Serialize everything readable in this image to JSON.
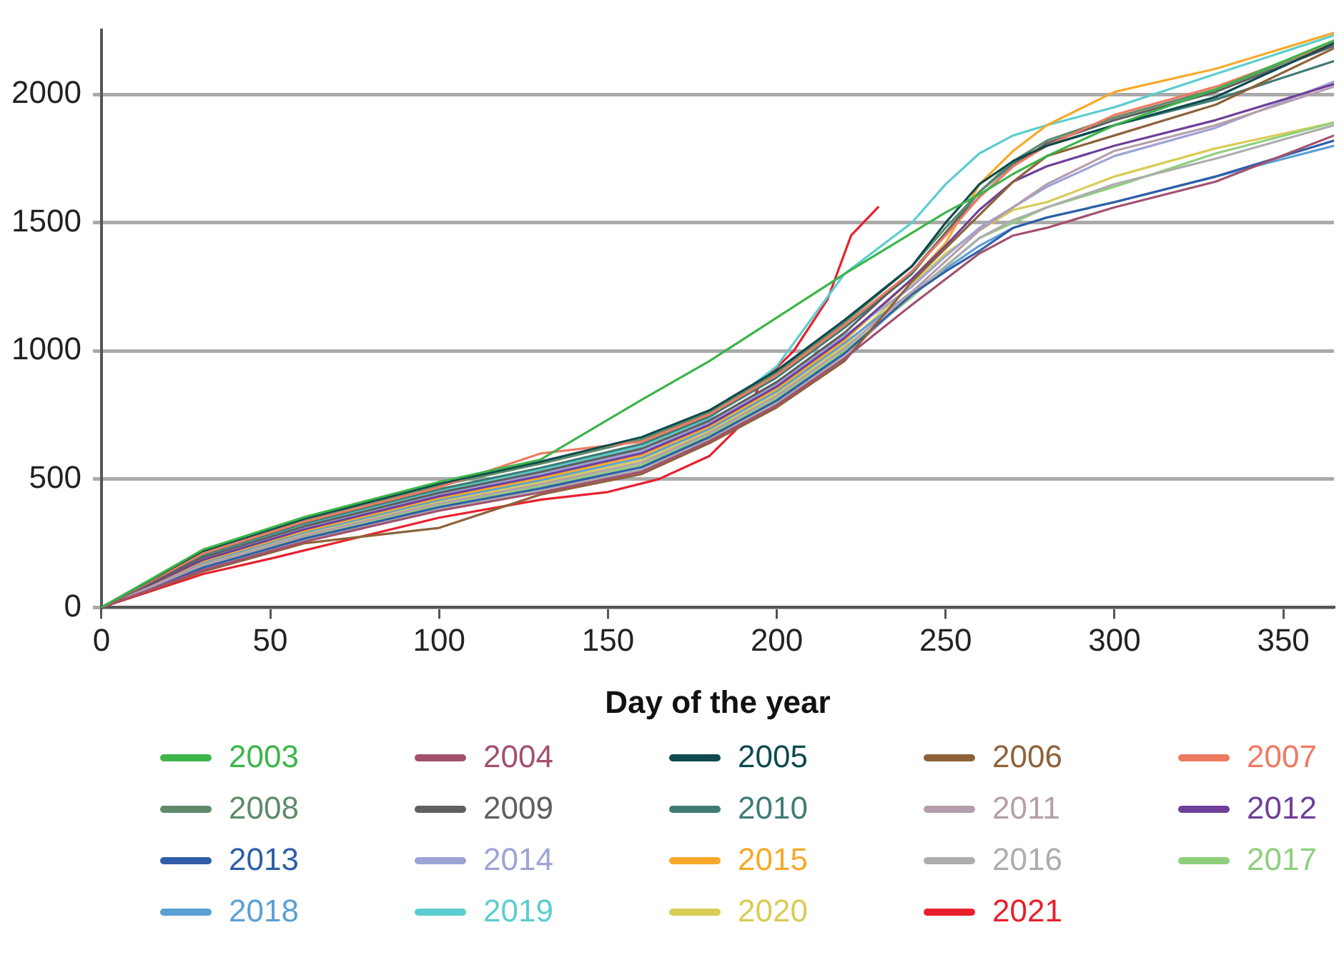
{
  "chart_data": {
    "type": "line",
    "xlabel": "Day of the year",
    "xlim": [
      0,
      365
    ],
    "xticks": [
      0,
      50,
      100,
      150,
      200,
      250,
      300,
      350
    ],
    "ylim": [
      0,
      2250
    ],
    "yticks": [
      0,
      500,
      1000,
      1500,
      2000
    ],
    "grid": "y",
    "legend": "bottom",
    "marker": "none",
    "line_style": "solid",
    "x": [
      0,
      30,
      60,
      100,
      130,
      160,
      180,
      200,
      220,
      240,
      250,
      260,
      270,
      280,
      300,
      330,
      365
    ],
    "series": [
      {
        "name": "2003",
        "color": "#3cb54a",
        "values": [
          0,
          225,
          352,
          489,
          576,
          810,
          960,
          1130,
          1300,
          1460,
          1540,
          1610,
          1690,
          1760,
          1880,
          2020,
          2210
        ]
      },
      {
        "name": "2004",
        "color": "#a2506e",
        "values": [
          0,
          145,
          256,
          377,
          448,
          529,
          648,
          789,
          970,
          1180,
          1280,
          1380,
          1450,
          1480,
          1560,
          1660,
          1840
        ]
      },
      {
        "name": "2005",
        "color": "#0e4a4e",
        "values": [
          0,
          220,
          346,
          482,
          568,
          664,
          768,
          924,
          1120,
          1330,
          1500,
          1650,
          1740,
          1800,
          1880,
          1990,
          2200
        ]
      },
      {
        "name": "2006",
        "color": "#8e6239",
        "values": [
          0,
          140,
          250,
          310,
          440,
          520,
          640,
          780,
          960,
          1270,
          1400,
          1530,
          1660,
          1760,
          1840,
          1960,
          2180
        ]
      },
      {
        "name": "2007",
        "color": "#ef7a62",
        "values": [
          0,
          210,
          334,
          468,
          600,
          646,
          752,
          906,
          1100,
          1310,
          1450,
          1600,
          1720,
          1800,
          1920,
          2030,
          2200
        ]
      },
      {
        "name": "2008",
        "color": "#5e8a6a",
        "values": [
          0,
          215,
          340,
          475,
          560,
          655,
          760,
          915,
          1110,
          1330,
          1480,
          1620,
          1740,
          1820,
          1910,
          2020,
          2200
        ]
      },
      {
        "name": "2009",
        "color": "#5f5f5f",
        "values": [
          0,
          195,
          316,
          447,
          528,
          619,
          728,
          879,
          1070,
          1310,
          1460,
          1600,
          1720,
          1810,
          1900,
          2010,
          2190
        ]
      },
      {
        "name": "2010",
        "color": "#3e7c74",
        "values": [
          0,
          205,
          328,
          461,
          544,
          637,
          744,
          897,
          1090,
          1300,
          1460,
          1620,
          1730,
          1800,
          1880,
          1980,
          2130
        ]
      },
      {
        "name": "2011",
        "color": "#b59eab",
        "values": [
          0,
          165,
          280,
          405,
          480,
          565,
          680,
          825,
          1010,
          1230,
          1350,
          1470,
          1560,
          1650,
          1780,
          1880,
          2030
        ]
      },
      {
        "name": "2012",
        "color": "#6e3f9a",
        "values": [
          0,
          185,
          304,
          433,
          512,
          601,
          712,
          861,
          1050,
          1280,
          1410,
          1550,
          1660,
          1720,
          1800,
          1900,
          2040
        ]
      },
      {
        "name": "2013",
        "color": "#2f5ea8",
        "values": [
          0,
          155,
          268,
          391,
          464,
          547,
          664,
          807,
          990,
          1220,
          1310,
          1390,
          1480,
          1520,
          1580,
          1680,
          1820
        ]
      },
      {
        "name": "2014",
        "color": "#9ea3d6",
        "values": [
          0,
          190,
          310,
          440,
          520,
          610,
          720,
          870,
          1060,
          1250,
          1370,
          1480,
          1560,
          1640,
          1760,
          1870,
          2050
        ]
      },
      {
        "name": "2015",
        "color": "#f7a929",
        "values": [
          0,
          180,
          298,
          426,
          504,
          592,
          704,
          852,
          1040,
          1280,
          1420,
          1650,
          1780,
          1880,
          2010,
          2100,
          2240
        ]
      },
      {
        "name": "2016",
        "color": "#adadad",
        "values": [
          0,
          150,
          262,
          384,
          456,
          538,
          656,
          798,
          980,
          1220,
          1330,
          1440,
          1510,
          1560,
          1650,
          1750,
          1880
        ]
      },
      {
        "name": "2017",
        "color": "#8fcf7c",
        "values": [
          0,
          160,
          274,
          398,
          472,
          556,
          672,
          816,
          1000,
          1210,
          1330,
          1440,
          1500,
          1560,
          1640,
          1770,
          1890
        ]
      },
      {
        "name": "2018",
        "color": "#5aa0d4",
        "values": [
          0,
          175,
          292,
          419,
          496,
          583,
          696,
          843,
          1030,
          1230,
          1320,
          1410,
          1480,
          1520,
          1580,
          1680,
          1800
        ]
      },
      {
        "name": "2019",
        "color": "#5ccdcf",
        "values": [
          0,
          200,
          322,
          454,
          536,
          628,
          736,
          940,
          1300,
          1500,
          1650,
          1770,
          1840,
          1880,
          1950,
          2080,
          2230
        ]
      },
      {
        "name": "2020",
        "color": "#d8cc55",
        "values": [
          0,
          170,
          286,
          412,
          488,
          574,
          688,
          834,
          1020,
          1260,
          1380,
          1470,
          1550,
          1580,
          1680,
          1790,
          1890
        ]
      },
      {
        "name": "2021",
        "color": "#e8202c",
        "x": [
          0,
          30,
          50,
          100,
          130,
          150,
          165,
          180,
          190,
          195,
          205,
          215,
          222,
          230
        ],
        "values": [
          0,
          130,
          190,
          350,
          420,
          450,
          500,
          590,
          720,
          870,
          1000,
          1200,
          1450,
          1560
        ]
      }
    ]
  }
}
